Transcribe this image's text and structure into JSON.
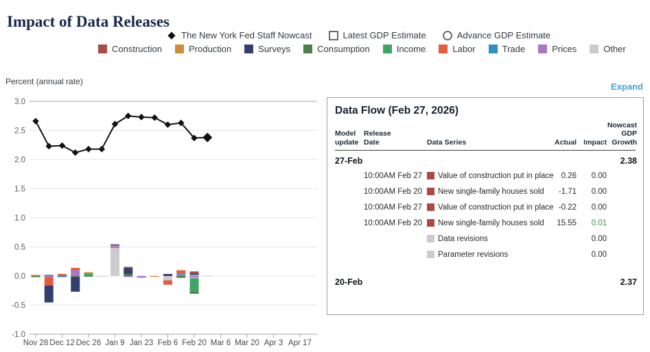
{
  "page": {
    "title": "Impact of Data Releases",
    "expand_label": "Expand"
  },
  "colors": {
    "title_text": "#14284b",
    "accent_link": "#4aa0dc",
    "impact_positive": "#3c9246",
    "nowcast_line": "#111111",
    "gridline": "#e4e4e7",
    "axis_line": "#a3a3a3"
  },
  "legend": {
    "markers": [
      {
        "label": "The New York Fed Staff Nowcast",
        "marker": "diamond"
      },
      {
        "label": "Latest GDP Estimate",
        "marker": "square-outline"
      },
      {
        "label": "Advance GDP Estimate",
        "marker": "circle-outline"
      }
    ],
    "categories": [
      {
        "label": "Construction",
        "color": "#ad4a45"
      },
      {
        "label": "Production",
        "color": "#cd8b3c"
      },
      {
        "label": "Surveys",
        "color": "#343e6e"
      },
      {
        "label": "Consumption",
        "color": "#4d7f46"
      },
      {
        "label": "Income",
        "color": "#3fa364"
      },
      {
        "label": "Labor",
        "color": "#e55c3c"
      },
      {
        "label": "Trade",
        "color": "#2f8fc7"
      },
      {
        "label": "Prices",
        "color": "#a978c5"
      },
      {
        "label": "Other",
        "color": "#cbcbd0"
      }
    ]
  },
  "chart_data": {
    "type": "line+stacked-bar",
    "title": "Impact of Data Releases",
    "ylabel": "Percent (annual rate)",
    "ylim": [
      -1.0,
      3.0
    ],
    "yticks": [
      3.0,
      2.5,
      2.0,
      1.5,
      1.0,
      0.5,
      0.0,
      -0.5,
      -1.0
    ],
    "grid": "horizontal",
    "legend_position": "top-center",
    "x_tick_labels": [
      "Nov 28",
      "Dec 12",
      "Dec 26",
      "Jan 9",
      "Jan 23",
      "Feb 6",
      "Feb 20",
      "Mar 6",
      "Mar 20",
      "Apr 3",
      "Apr 17"
    ],
    "weeks": [
      "Nov 28",
      "Dec 5",
      "Dec 12",
      "Dec 19",
      "Dec 26",
      "Jan 2",
      "Jan 9",
      "Jan 16",
      "Jan 23",
      "Jan 30",
      "Feb 6",
      "Feb 13",
      "Feb 20",
      "Feb 27"
    ],
    "nowcast_line": {
      "name": "The New York Fed Staff Nowcast",
      "values": [
        2.66,
        2.23,
        2.24,
        2.12,
        2.18,
        2.18,
        2.61,
        2.75,
        2.73,
        2.72,
        2.6,
        2.63,
        2.37,
        2.38
      ],
      "last_point_emphasized": true
    },
    "bars": [
      {
        "week": "Nov 28",
        "segments": [
          {
            "category": "Production",
            "value": 0.02
          },
          {
            "category": "Consumption",
            "value": -0.02
          }
        ]
      },
      {
        "week": "Dec 5",
        "segments": [
          {
            "category": "Trade",
            "value": 0.02
          },
          {
            "category": "Prices",
            "value": -0.015
          },
          {
            "category": "Labor",
            "value": -0.15
          },
          {
            "category": "Surveys",
            "value": -0.29
          }
        ]
      },
      {
        "week": "Dec 12",
        "segments": [
          {
            "category": "Labor",
            "value": 0.035
          },
          {
            "category": "Trade",
            "value": -0.02
          }
        ]
      },
      {
        "week": "Dec 19",
        "segments": [
          {
            "category": "Prices",
            "value": 0.1
          },
          {
            "category": "Labor",
            "value": 0.04
          },
          {
            "category": "Consumption",
            "value": -0.015
          },
          {
            "category": "Surveys",
            "value": -0.255
          }
        ]
      },
      {
        "week": "Dec 26",
        "segments": [
          {
            "category": "Income",
            "value": 0.045
          },
          {
            "category": "Production",
            "value": 0.02
          },
          {
            "category": "Consumption",
            "value": -0.008
          }
        ]
      },
      {
        "week": "Jan 2",
        "segments": [
          {
            "category": "Other",
            "value": -0.012
          }
        ]
      },
      {
        "week": "Jan 9",
        "segments": [
          {
            "category": "Other",
            "value": 0.48
          },
          {
            "category": "Prices",
            "value": 0.035
          },
          {
            "category": "Labor",
            "value": 0.018
          },
          {
            "category": "Surveys",
            "value": 0.012
          }
        ]
      },
      {
        "week": "Jan 16",
        "segments": [
          {
            "category": "Consumption",
            "value": 0.035
          },
          {
            "category": "Surveys",
            "value": 0.1
          },
          {
            "category": "Construction",
            "value": 0.022
          },
          {
            "category": "Prices",
            "value": -0.018
          }
        ]
      },
      {
        "week": "Jan 23",
        "segments": [
          {
            "category": "Prices",
            "value": -0.03
          }
        ]
      },
      {
        "week": "Jan 30",
        "segments": [
          {
            "category": "Production",
            "value": -0.015
          }
        ]
      },
      {
        "week": "Feb 6",
        "segments": [
          {
            "category": "Surveys",
            "value": 0.035
          },
          {
            "category": "Other",
            "value": -0.075
          },
          {
            "category": "Labor",
            "value": -0.075
          }
        ]
      },
      {
        "week": "Feb 13",
        "segments": [
          {
            "category": "Prices",
            "value": 0.025
          },
          {
            "category": "Trade",
            "value": 0.018
          },
          {
            "category": "Labor",
            "value": 0.055
          },
          {
            "category": "Consumption",
            "value": -0.032
          }
        ]
      },
      {
        "week": "Feb 20",
        "segments": [
          {
            "category": "Other",
            "value": 0.018
          },
          {
            "category": "Surveys",
            "value": 0.025
          },
          {
            "category": "Construction",
            "value": 0.035
          },
          {
            "category": "Prices",
            "value": -0.028
          },
          {
            "category": "Other",
            "value": -0.012
          },
          {
            "category": "Income",
            "value": -0.23
          },
          {
            "category": "Consumption",
            "value": -0.035
          }
        ]
      },
      {
        "week": "Feb 27",
        "segments": [
          {
            "category": "Other",
            "value": 0.008
          }
        ]
      }
    ]
  },
  "data_flow": {
    "title": "Data Flow (Feb 27, 2026)",
    "headers": {
      "model_update": "Model update",
      "release_date": "Release Date",
      "data_series": "Data Series",
      "actual": "Actual",
      "impact": "Impact",
      "nowcast": "Nowcast GDP Growth"
    },
    "groups": [
      {
        "model_update": "27-Feb",
        "nowcast_gdp_growth": "2.38",
        "rows": [
          {
            "release_date": "10:00AM Feb 27",
            "category": "Construction",
            "series": "Value of construction put in place",
            "actual": "0.26",
            "impact": "0.00",
            "impact_positive": false
          },
          {
            "release_date": "10:00AM Feb 20",
            "category": "Construction",
            "series": "New single-family houses sold",
            "actual": "-1.71",
            "impact": "0.00",
            "impact_positive": false
          },
          {
            "release_date": "10:00AM Feb 27",
            "category": "Construction",
            "series": "Value of construction put in place",
            "actual": "-0.22",
            "impact": "0.00",
            "impact_positive": false
          },
          {
            "release_date": "10:00AM Feb 20",
            "category": "Construction",
            "series": "New single-family houses sold",
            "actual": "15.55",
            "impact": "0.01",
            "impact_positive": true
          },
          {
            "release_date": "",
            "category": "Other",
            "series": "Data revisions",
            "actual": "",
            "impact": "0.00",
            "impact_positive": false
          },
          {
            "release_date": "",
            "category": "Other",
            "series": "Parameter revisions",
            "actual": "",
            "impact": "0.00",
            "impact_positive": false
          }
        ]
      },
      {
        "model_update": "20-Feb",
        "nowcast_gdp_growth": "2.37",
        "rows": []
      }
    ]
  }
}
